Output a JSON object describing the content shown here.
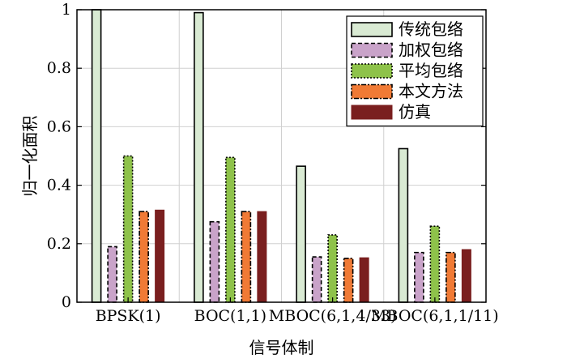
{
  "chart_data": {
    "type": "bar",
    "title": "",
    "xlabel": "信号体制",
    "ylabel": "归一化面积",
    "ylim": [
      0,
      1
    ],
    "yticks": [
      0,
      0.2,
      0.4,
      0.6,
      0.8,
      1
    ],
    "ytick_labels": [
      "0",
      "0.2",
      "0.4",
      "0.6",
      "0.8",
      "1"
    ],
    "grid": true,
    "legend_position": "top-right",
    "categories": [
      "BPSK(1)",
      "BOC(1,1)",
      "MBOC(6,1,4/33)",
      "MBOC(6,1,1/11)"
    ],
    "series": [
      {
        "name": "传统包络",
        "values": [
          1.0,
          0.99,
          0.465,
          0.525
        ],
        "color": "#d9ead3",
        "border": "solid"
      },
      {
        "name": "加权包络",
        "values": [
          0.19,
          0.275,
          0.155,
          0.17
        ],
        "color": "#c9a3c9",
        "border": "dashed"
      },
      {
        "name": "平均包络",
        "values": [
          0.5,
          0.495,
          0.23,
          0.26
        ],
        "color": "#8ec24a",
        "border": "dotted"
      },
      {
        "name": "本文方法",
        "values": [
          0.31,
          0.31,
          0.15,
          0.17
        ],
        "color": "#f07a35",
        "border": "dashdot"
      },
      {
        "name": "仿真",
        "values": [
          0.315,
          0.31,
          0.152,
          0.18
        ],
        "color": "#7a1f1f",
        "border": "none"
      }
    ]
  }
}
